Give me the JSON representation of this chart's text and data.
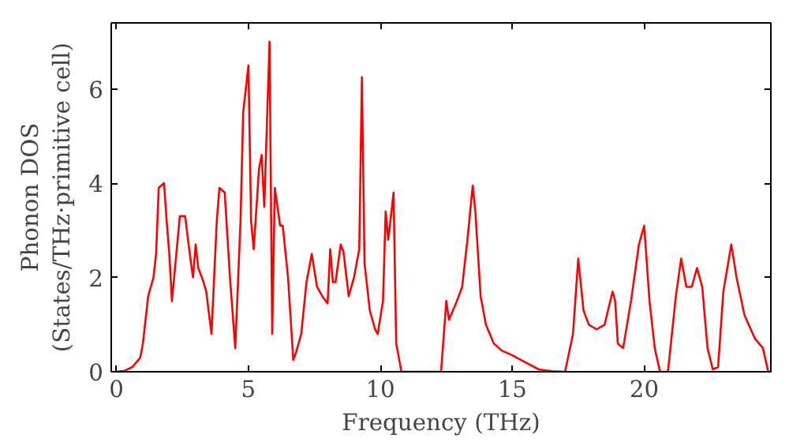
{
  "chart_data": {
    "type": "line",
    "xlabel": "Frequency (THz)",
    "ylabel": "Phonon DOS\n(States/THz·primitive cell)",
    "xlim": [
      -0.2,
      24.8
    ],
    "ylim": [
      0,
      7.4
    ],
    "xticks": [
      0,
      5,
      10,
      15,
      20
    ],
    "yticks": [
      0,
      2,
      4,
      6
    ],
    "grid": false,
    "marker": "none",
    "line_style": "solid",
    "series": [
      {
        "color": "#ff0000",
        "x": [
          0,
          0.3,
          0.6,
          0.9,
          1.0,
          1.2,
          1.4,
          1.5,
          1.6,
          1.8,
          1.9,
          2.0,
          2.1,
          2.3,
          2.4,
          2.6,
          2.8,
          2.9,
          3.0,
          3.1,
          3.3,
          3.4,
          3.6,
          3.8,
          3.9,
          4.1,
          4.3,
          4.5,
          4.7,
          4.8,
          5.0,
          5.1,
          5.2,
          5.4,
          5.5,
          5.6,
          5.8,
          5.9,
          6.0,
          6.2,
          6.3,
          6.5,
          6.7,
          6.8,
          7.0,
          7.2,
          7.4,
          7.6,
          7.8,
          8.0,
          8.1,
          8.2,
          8.3,
          8.5,
          8.6,
          8.8,
          9.0,
          9.2,
          9.3,
          9.4,
          9.6,
          9.8,
          9.9,
          10.1,
          10.2,
          10.3,
          10.5,
          10.6,
          10.8,
          12.3,
          12.5,
          12.6,
          12.9,
          13.1,
          13.3,
          13.5,
          13.6,
          13.8,
          14.0,
          14.3,
          14.6,
          15.0,
          15.5,
          16.0,
          16.5,
          17.0,
          17.3,
          17.5,
          17.7,
          17.9,
          18.2,
          18.5,
          18.8,
          18.9,
          19.0,
          19.2,
          19.5,
          19.8,
          20.0,
          20.2,
          20.4,
          20.6,
          20.9,
          21.2,
          21.4,
          21.6,
          21.8,
          22.0,
          22.2,
          22.4,
          22.6,
          22.8,
          23.0,
          23.3,
          23.5,
          23.8,
          24.2,
          24.5,
          24.7,
          24.8
        ],
        "values": [
          0,
          0.02,
          0.1,
          0.3,
          0.6,
          1.6,
          2.0,
          2.5,
          3.9,
          4.0,
          3.2,
          2.5,
          1.5,
          2.7,
          3.3,
          3.3,
          2.4,
          2.0,
          2.7,
          2.2,
          1.9,
          1.7,
          0.8,
          3.2,
          3.9,
          3.8,
          2.0,
          0.5,
          3.2,
          5.5,
          6.5,
          3.2,
          2.6,
          4.3,
          4.6,
          3.5,
          7.0,
          0.8,
          3.9,
          3.1,
          3.1,
          2.0,
          0.25,
          0.4,
          0.8,
          1.9,
          2.5,
          1.8,
          1.6,
          1.45,
          2.6,
          1.9,
          1.9,
          2.7,
          2.55,
          1.6,
          2.0,
          2.6,
          6.25,
          2.3,
          1.3,
          0.9,
          0.8,
          1.5,
          3.4,
          2.8,
          3.8,
          0.6,
          0,
          0,
          1.5,
          1.1,
          1.5,
          1.8,
          2.8,
          3.95,
          3.4,
          1.6,
          1.0,
          0.6,
          0.45,
          0.35,
          0.2,
          0.05,
          0.01,
          0,
          0.8,
          2.4,
          1.3,
          1.0,
          0.9,
          1.0,
          1.7,
          1.5,
          0.6,
          0.5,
          1.5,
          2.7,
          3.1,
          1.5,
          0.5,
          0,
          0,
          1.6,
          2.4,
          1.8,
          1.8,
          2.2,
          1.8,
          0.5,
          0.05,
          0.1,
          1.7,
          2.7,
          2.0,
          1.2,
          0.7,
          0.5,
          0,
          0
        ]
      }
    ]
  }
}
